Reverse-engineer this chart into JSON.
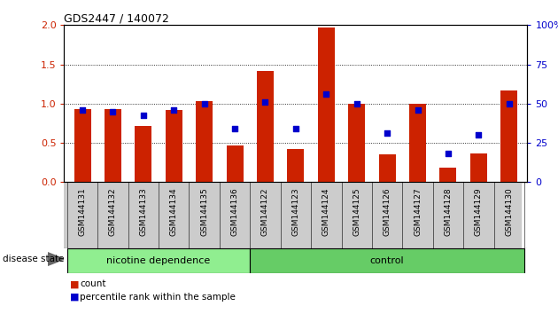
{
  "title": "GDS2447 / 140072",
  "samples": [
    "GSM144131",
    "GSM144132",
    "GSM144133",
    "GSM144134",
    "GSM144135",
    "GSM144136",
    "GSM144122",
    "GSM144123",
    "GSM144124",
    "GSM144125",
    "GSM144126",
    "GSM144127",
    "GSM144128",
    "GSM144129",
    "GSM144130"
  ],
  "red_bars": [
    0.93,
    0.93,
    0.72,
    0.92,
    1.03,
    0.47,
    1.42,
    0.42,
    1.97,
    1.0,
    0.35,
    1.0,
    0.18,
    0.37,
    1.17
  ],
  "blue_dots": [
    0.92,
    0.9,
    0.85,
    0.92,
    1.0,
    0.68,
    1.02,
    0.68,
    1.12,
    1.0,
    0.63,
    0.92,
    0.37,
    0.6,
    1.0
  ],
  "nd_count": 6,
  "ctrl_count": 9,
  "ylim": [
    0,
    2
  ],
  "yticks_left": [
    0,
    0.5,
    1.0,
    1.5,
    2.0
  ],
  "yticks_right": [
    0,
    25,
    50,
    75,
    100
  ],
  "bar_color": "#cc2200",
  "dot_color": "#0000cc",
  "nd_color": "#90ee90",
  "ctrl_color": "#66cc66",
  "label_bg_color": "#cccccc",
  "bar_width": 0.55
}
